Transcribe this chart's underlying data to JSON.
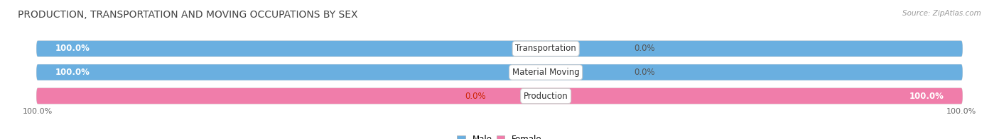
{
  "title": "PRODUCTION, TRANSPORTATION AND MOVING OCCUPATIONS BY SEX",
  "source": "Source: ZipAtlas.com",
  "categories": [
    "Transportation",
    "Material Moving",
    "Production"
  ],
  "male_values": [
    100.0,
    100.0,
    0.0
  ],
  "female_values": [
    0.0,
    0.0,
    100.0
  ],
  "male_color": "#6aafe0",
  "female_color": "#f07daa",
  "male_light_color": "#aed4f0",
  "female_light_color": "#f9bbd0",
  "bar_bg_color": "#e8e8e8",
  "bar_border_color": "#d0d0d0",
  "title_fontsize": 10,
  "label_fontsize": 8.5,
  "tick_fontsize": 8,
  "source_fontsize": 7.5,
  "cat_label_fontsize": 8.5,
  "figsize": [
    14.06,
    1.97
  ],
  "dpi": 100,
  "label_split": 55.0,
  "zero_color_red": "#cc2200",
  "zero_color_dark": "#555555"
}
